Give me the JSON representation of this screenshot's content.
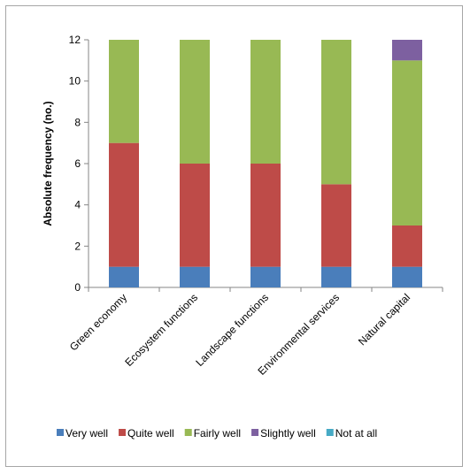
{
  "chart_data": {
    "type": "bar",
    "stacked": true,
    "title": "",
    "xlabel": "",
    "ylabel": "Absolute frequency (no.)",
    "ylim": [
      0,
      12
    ],
    "yticks": [
      0,
      2,
      4,
      6,
      8,
      10,
      12
    ],
    "categories": [
      "Green economy",
      "Ecosystem functions",
      "Landscape functions",
      "Environmental services",
      "Natural capital"
    ],
    "series": [
      {
        "name": "Very well",
        "color": "#4a7ebb",
        "values": [
          1,
          1,
          1,
          1,
          1
        ]
      },
      {
        "name": "Quite well",
        "color": "#be4b48",
        "values": [
          6,
          5,
          5,
          4,
          2
        ]
      },
      {
        "name": "Fairly well",
        "color": "#98b954",
        "values": [
          5,
          6,
          6,
          7,
          8
        ]
      },
      {
        "name": "Slightly well",
        "color": "#7d60a0",
        "values": [
          0,
          0,
          0,
          0,
          1
        ]
      },
      {
        "name": "Not at all",
        "color": "#46aac5",
        "values": [
          0,
          0,
          0,
          0,
          0
        ]
      }
    ],
    "grid": false,
    "legend_position": "bottom"
  }
}
